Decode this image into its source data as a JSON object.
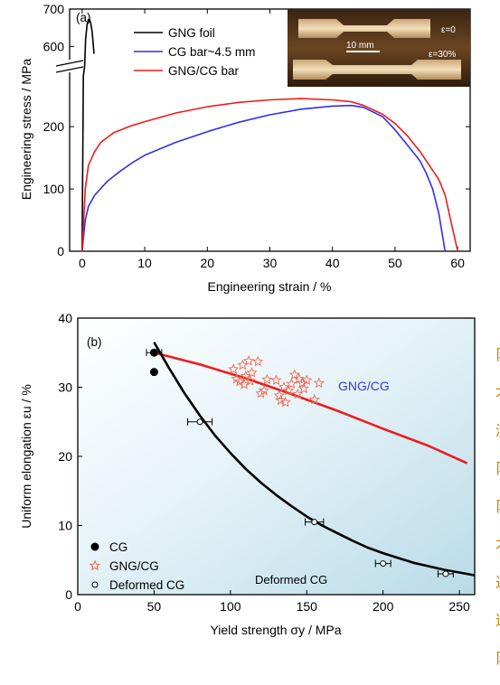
{
  "chart_data": [
    {
      "panel": "(a)",
      "type": "line",
      "xlabel": "Engineering strain / %",
      "ylabel": "Engineering stress / MPa",
      "xlim": [
        -2,
        62
      ],
      "ylim": [
        0,
        700
      ],
      "axis_break": {
        "lower": [
          0,
          280
        ],
        "upper": [
          550,
          700
        ]
      },
      "xticks": [
        "0",
        "10",
        "20",
        "30",
        "40",
        "50",
        "60"
      ],
      "yticks_lower": [
        "0",
        "100",
        "200"
      ],
      "yticks_upper": [
        "600",
        "700"
      ],
      "legend_position": "top-left",
      "series": [
        {
          "name": "GNG foil",
          "color": "#000000",
          "x": [
            0,
            0.2,
            0.4,
            0.55,
            0.8,
            1.0,
            1.2,
            1.4,
            1.6,
            1.8,
            1.9
          ],
          "y": [
            0,
            300,
            520,
            620,
            660,
            672,
            672,
            660,
            640,
            600,
            580
          ]
        },
        {
          "name": "CG bar~4.5 mm",
          "color": "#2f2fee",
          "x": [
            0,
            0.5,
            1,
            2,
            4,
            6,
            8,
            10,
            15,
            20,
            25,
            30,
            35,
            40,
            43,
            45,
            48,
            50,
            52,
            54,
            55,
            56,
            57,
            58
          ],
          "y": [
            0,
            50,
            72,
            90,
            112,
            128,
            142,
            154,
            175,
            192,
            207,
            219,
            228,
            233,
            234,
            231,
            216,
            195,
            170,
            145,
            125,
            100,
            60,
            0
          ]
        },
        {
          "name": "GNG/CG bar",
          "color": "#ee1c1c",
          "x": [
            0,
            0.5,
            1,
            2,
            3,
            5,
            8,
            10,
            15,
            20,
            25,
            30,
            35,
            40,
            43,
            45,
            48,
            50,
            52,
            54,
            55,
            56,
            57,
            58,
            59,
            60
          ],
          "y": [
            0,
            100,
            138,
            160,
            175,
            190,
            202,
            208,
            222,
            232,
            239,
            243,
            245,
            243,
            240,
            234,
            220,
            205,
            185,
            160,
            145,
            130,
            115,
            90,
            45,
            0
          ]
        }
      ],
      "inset": {
        "labels": [
          "ε=0",
          "ε=30%"
        ],
        "scale_bar": "10 mm"
      }
    },
    {
      "panel": "(b)",
      "type": "scatter",
      "xlabel": "Yield strength σy / MPa",
      "ylabel": "Uniform elongation εu / %",
      "xlim": [
        0,
        260
      ],
      "ylim": [
        0,
        40
      ],
      "xticks": [
        "0",
        "50",
        "100",
        "150",
        "200",
        "250"
      ],
      "yticks": [
        "0",
        "10",
        "20",
        "30",
        "40"
      ],
      "background": "light-blue-gradient",
      "legend_position": "bottom-left",
      "series": [
        {
          "name": "CG",
          "color": "#000000",
          "marker": "filled-circle",
          "x": [
            50,
            50
          ],
          "y": [
            35,
            32.2
          ]
        },
        {
          "name": "GNG/CG",
          "color": "#f26a4f",
          "marker": "star",
          "x": [
            102,
            104,
            106,
            108,
            109,
            110,
            112,
            113,
            114,
            118,
            120,
            122,
            124,
            130,
            132,
            133,
            135,
            136,
            138,
            140,
            142,
            144,
            145,
            147,
            148,
            150,
            155,
            158
          ],
          "y": [
            32.6,
            31.2,
            30.8,
            33.2,
            30.4,
            31.6,
            33.8,
            30.9,
            32.1,
            33.7,
            29.1,
            29.5,
            31.1,
            31.0,
            28.8,
            28.1,
            30.0,
            27.8,
            29.5,
            30.5,
            31.8,
            29.0,
            31.2,
            30.6,
            29.8,
            31.0,
            28.2,
            30.6
          ]
        },
        {
          "name": "Deformed CG",
          "color": "#000000",
          "marker": "open-circle",
          "x": [
            50,
            80,
            155,
            200,
            241
          ],
          "y": [
            35,
            25,
            10.5,
            4.5,
            3.0
          ],
          "xerr": [
            5,
            8,
            6,
            5,
            5
          ]
        }
      ],
      "curves": [
        {
          "label": "GNG/CG",
          "color": "#ee1c1c",
          "x": [
            50,
            80,
            110,
            140,
            170,
            200,
            230,
            255
          ],
          "y": [
            35,
            33.3,
            31.3,
            29,
            26.6,
            24,
            21.5,
            19
          ]
        },
        {
          "label": "Deformed CG",
          "color": "#000000",
          "x": [
            50,
            60,
            70,
            80,
            90,
            100,
            110,
            120,
            130,
            140,
            150,
            160,
            170,
            180,
            190,
            200,
            210,
            220,
            230,
            240,
            250,
            260
          ],
          "y": [
            36.5,
            32.7,
            29.1,
            25.9,
            23.0,
            20.5,
            18.2,
            16.2,
            14.4,
            12.8,
            11.3,
            10.0,
            8.9,
            7.8,
            6.8,
            6.0,
            5.3,
            4.6,
            4.1,
            3.6,
            3.2,
            2.8
          ]
        }
      ]
    }
  ],
  "right_edge_glyphs": [
    "阝",
    "才",
    "济",
    "阝",
    "阝",
    "才",
    "迁",
    "适",
    "阝"
  ]
}
